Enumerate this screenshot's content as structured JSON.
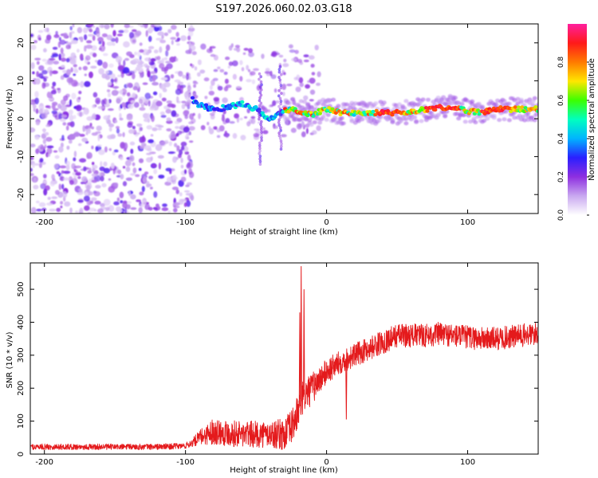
{
  "title": "S197.2026.060.02.03.G18",
  "chart_data": [
    {
      "type": "heatmap",
      "title": "S197.2026.060.02.03.G18",
      "xlabel": "Height of straight line (km)",
      "ylabel": "Frequency (Hz)",
      "xlim": [
        -210,
        150
      ],
      "ylim": [
        -25,
        25
      ],
      "xticks": [
        -200,
        -100,
        0,
        100
      ],
      "xtick_labels": [
        "-200",
        "-100",
        "0",
        "100"
      ],
      "yticks": [
        -20,
        -10,
        0,
        10,
        20
      ],
      "ytick_labels": [
        "-20",
        "-10",
        "0",
        "10",
        "20"
      ],
      "ridge": {
        "description": "dominant frequency track",
        "x": [
          -95,
          -90,
          -80,
          -70,
          -60,
          -50,
          -45,
          -40,
          -35,
          -30,
          -25,
          -20,
          -10,
          0,
          10,
          20,
          40,
          60,
          70,
          80,
          90,
          100,
          110,
          120,
          130,
          150
        ],
        "y": [
          5,
          3.5,
          2.5,
          3,
          4,
          2.5,
          1,
          0,
          1,
          2,
          2.5,
          1.8,
          1.2,
          2.5,
          1.5,
          1.5,
          1.5,
          1.8,
          2.5,
          3,
          3,
          2,
          1.5,
          2.5,
          2.5,
          2.5
        ]
      },
      "noise_region": [
        -210,
        -95
      ],
      "colorbar": {
        "label": "Normalized spectral amplitude",
        "range": [
          0,
          1
        ],
        "ticks": [
          0.0,
          0.2,
          0.4,
          0.6,
          0.8
        ],
        "tick_labels": [
          "0.0",
          "0.2",
          "0.4",
          "0.6",
          "0.8"
        ],
        "colors": [
          "#ffffff",
          "#c9a8f0",
          "#8e2fe0",
          "#2a1fff",
          "#00b4ff",
          "#00ffc0",
          "#3cff00",
          "#ffe600",
          "#ff7a00",
          "#ff1a1a",
          "#ff1f9e"
        ]
      }
    },
    {
      "type": "line",
      "xlabel": "Height of straight line (km)",
      "ylabel": "SNR (10 * v/v)",
      "xlim": [
        -210,
        150
      ],
      "ylim": [
        0,
        580
      ],
      "xticks": [
        -200,
        -100,
        0,
        100
      ],
      "xtick_labels": [
        "-200",
        "-100",
        "0",
        "100"
      ],
      "yticks": [
        0,
        100,
        200,
        300,
        400,
        500
      ],
      "ytick_labels": [
        "0",
        "100",
        "200",
        "300",
        "400",
        "500"
      ],
      "series": [
        {
          "name": "SNR",
          "color": "#e41a1c",
          "envelope_x": [
            -210,
            -180,
            -150,
            -120,
            -100,
            -95,
            -90,
            -80,
            -70,
            -60,
            -50,
            -40,
            -30,
            -25,
            -20,
            -18,
            -15,
            -10,
            -5,
            0,
            10,
            15,
            20,
            30,
            40,
            50,
            60,
            70,
            80,
            90,
            100,
            110,
            120,
            130,
            140,
            150
          ],
          "envelope_y": [
            22,
            22,
            22,
            22,
            25,
            35,
            50,
            70,
            65,
            60,
            60,
            60,
            60,
            80,
            130,
            160,
            180,
            200,
            225,
            250,
            280,
            290,
            300,
            320,
            340,
            360,
            360,
            360,
            365,
            360,
            355,
            350,
            350,
            355,
            360,
            365
          ],
          "noise_amplitude": [
            10,
            10,
            10,
            10,
            10,
            15,
            25,
            45,
            45,
            45,
            45,
            45,
            55,
            60,
            60,
            60,
            55,
            55,
            45,
            45,
            40,
            40,
            40,
            40,
            40,
            40,
            40,
            40,
            40,
            40,
            40,
            40,
            40,
            40,
            40,
            40
          ],
          "spikes": [
            {
              "x": -18,
              "y": 570
            },
            {
              "x": -16,
              "y": 500
            },
            {
              "x": -19,
              "y": 430
            },
            {
              "x": 14,
              "y": 105
            }
          ]
        }
      ]
    }
  ]
}
